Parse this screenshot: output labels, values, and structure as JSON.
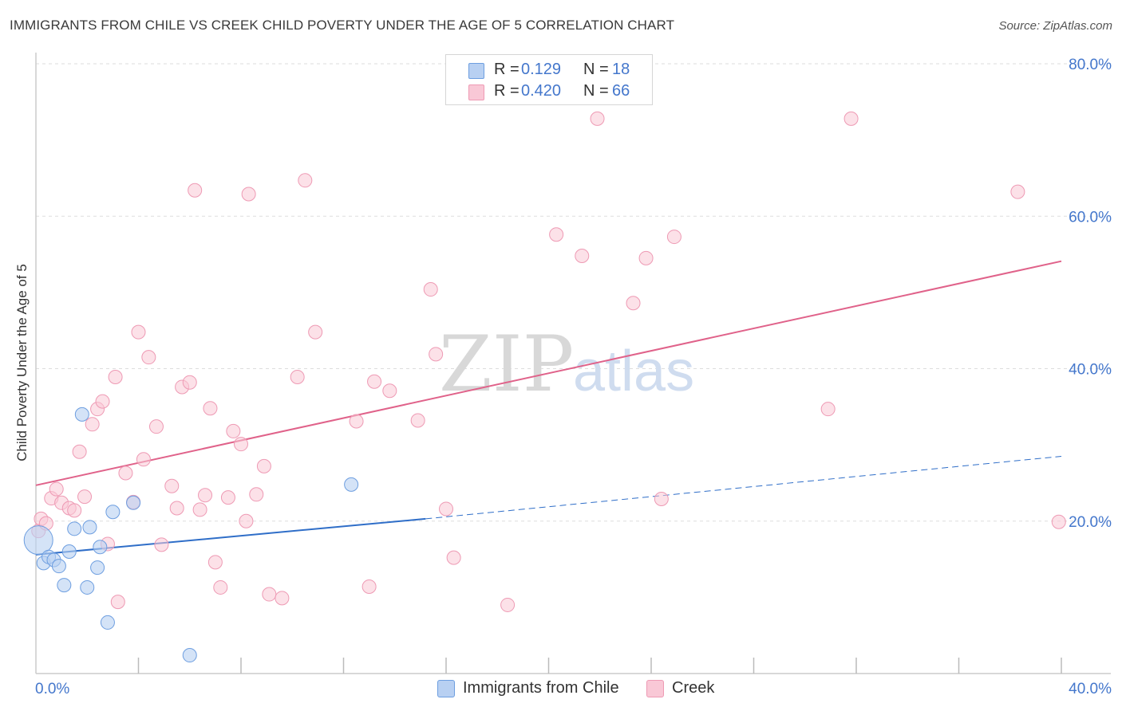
{
  "header": {
    "title": "IMMIGRANTS FROM CHILE VS CREEK CHILD POVERTY UNDER THE AGE OF 5 CORRELATION CHART",
    "source": "Source: ZipAtlas.com"
  },
  "watermark": {
    "zip": "ZIP",
    "atlas": "atlas"
  },
  "legend": {
    "rows": [
      {
        "r_label": "R =",
        "r_value": "0.129",
        "n_label": "N =",
        "n_value": "18"
      },
      {
        "r_label": "R =",
        "r_value": "0.420",
        "n_label": "N =",
        "n_value": "66"
      }
    ]
  },
  "bottom_legend": {
    "series1": "Immigrants from Chile",
    "series2": "Creek"
  },
  "colors": {
    "chile_fill": "#b8d0f2",
    "chile_stroke": "#6d9ee0",
    "chile_line": "#2f6ec8",
    "creek_fill": "#f9c8d6",
    "creek_stroke": "#ee9ab4",
    "creek_line": "#e0628a",
    "grid": "#dddddd",
    "tick_text": "#4477cc"
  },
  "chart_data": {
    "type": "scatter",
    "title": "IMMIGRANTS FROM CHILE VS CREEK CHILD POVERTY UNDER THE AGE OF 5 CORRELATION CHART",
    "xlabel": "",
    "ylabel": "Child Poverty Under the Age of 5",
    "xlim": [
      0,
      40
    ],
    "ylim": [
      0,
      80
    ],
    "x_tick_labels": [
      "0.0%",
      "40.0%"
    ],
    "y_ticks": [
      20,
      40,
      60,
      80
    ],
    "y_tick_labels": [
      "20.0%",
      "40.0%",
      "60.0%",
      "80.0%"
    ],
    "grid": true,
    "legend_position": "top-center",
    "series": [
      {
        "name": "Immigrants from Chile",
        "r": 0.129,
        "n": 18,
        "points": [
          [
            0.1,
            17.5
          ],
          [
            0.3,
            14.5
          ],
          [
            0.5,
            15.3
          ],
          [
            0.7,
            14.9
          ],
          [
            0.9,
            14.1
          ],
          [
            1.1,
            11.6
          ],
          [
            1.3,
            16.0
          ],
          [
            1.5,
            19.0
          ],
          [
            1.8,
            34.0
          ],
          [
            2.0,
            11.3
          ],
          [
            2.1,
            19.2
          ],
          [
            2.4,
            13.9
          ],
          [
            2.5,
            16.6
          ],
          [
            2.8,
            6.7
          ],
          [
            3.0,
            21.2
          ],
          [
            3.8,
            22.4
          ],
          [
            6.0,
            2.4
          ],
          [
            12.3,
            24.8
          ]
        ],
        "trend_solid": [
          [
            0,
            15.6
          ],
          [
            15.2,
            20.3
          ]
        ],
        "trend_dashed": [
          [
            15.2,
            20.3
          ],
          [
            40,
            28.5
          ]
        ]
      },
      {
        "name": "Creek",
        "r": 0.42,
        "n": 66,
        "points": [
          [
            0.1,
            18.7
          ],
          [
            0.2,
            20.3
          ],
          [
            0.4,
            19.7
          ],
          [
            0.6,
            23.0
          ],
          [
            0.8,
            24.2
          ],
          [
            1.0,
            22.4
          ],
          [
            1.3,
            21.7
          ],
          [
            1.5,
            21.4
          ],
          [
            1.7,
            29.1
          ],
          [
            1.9,
            23.2
          ],
          [
            2.2,
            32.7
          ],
          [
            2.4,
            34.7
          ],
          [
            2.6,
            35.7
          ],
          [
            2.8,
            17.0
          ],
          [
            3.1,
            38.9
          ],
          [
            3.2,
            9.4
          ],
          [
            3.5,
            26.3
          ],
          [
            3.8,
            22.5
          ],
          [
            4.0,
            44.8
          ],
          [
            4.2,
            28.1
          ],
          [
            4.4,
            41.5
          ],
          [
            4.7,
            32.4
          ],
          [
            4.9,
            16.9
          ],
          [
            5.3,
            24.6
          ],
          [
            5.5,
            21.7
          ],
          [
            5.7,
            37.6
          ],
          [
            6.0,
            38.2
          ],
          [
            6.2,
            63.4
          ],
          [
            6.4,
            21.5
          ],
          [
            6.6,
            23.4
          ],
          [
            6.8,
            34.8
          ],
          [
            7.0,
            14.6
          ],
          [
            7.2,
            11.3
          ],
          [
            7.5,
            23.1
          ],
          [
            7.7,
            31.8
          ],
          [
            8.0,
            30.1
          ],
          [
            8.2,
            20.0
          ],
          [
            8.3,
            62.9
          ],
          [
            8.6,
            23.5
          ],
          [
            8.9,
            27.2
          ],
          [
            9.1,
            10.4
          ],
          [
            9.6,
            9.9
          ],
          [
            10.2,
            38.9
          ],
          [
            10.5,
            64.7
          ],
          [
            10.9,
            44.8
          ],
          [
            12.5,
            33.1
          ],
          [
            13.0,
            11.4
          ],
          [
            13.2,
            38.3
          ],
          [
            13.8,
            37.1
          ],
          [
            14.9,
            33.2
          ],
          [
            15.4,
            50.4
          ],
          [
            15.6,
            41.9
          ],
          [
            16.0,
            21.6
          ],
          [
            16.3,
            15.2
          ],
          [
            18.4,
            9.0
          ],
          [
            20.3,
            57.6
          ],
          [
            21.3,
            54.8
          ],
          [
            21.9,
            72.8
          ],
          [
            23.3,
            48.6
          ],
          [
            23.8,
            54.5
          ],
          [
            24.4,
            22.9
          ],
          [
            24.9,
            57.3
          ],
          [
            30.9,
            34.7
          ],
          [
            31.8,
            72.8
          ],
          [
            38.3,
            63.2
          ],
          [
            39.9,
            19.9
          ]
        ],
        "trend_solid": [
          [
            0,
            24.7
          ],
          [
            40,
            54.1
          ]
        ]
      }
    ]
  }
}
